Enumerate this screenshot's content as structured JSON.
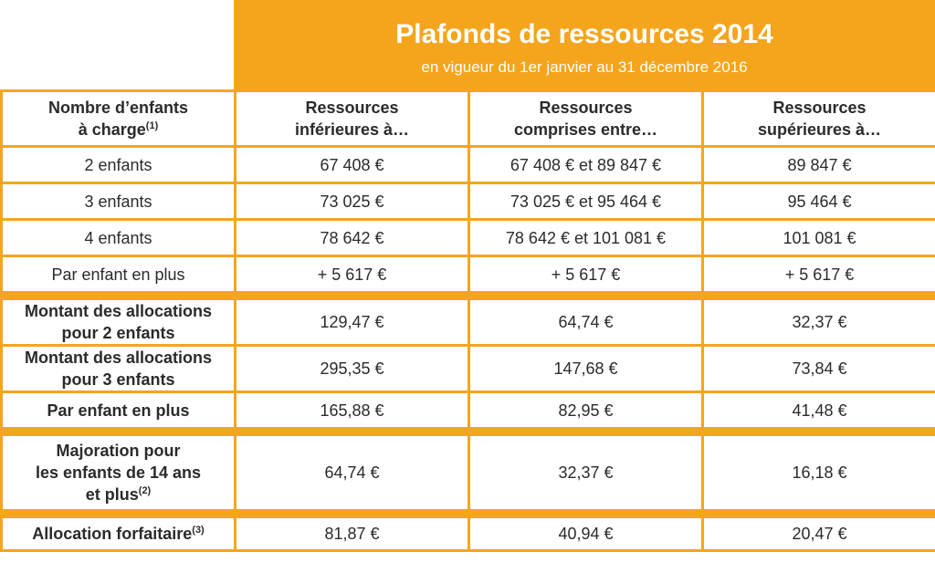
{
  "banner": {
    "title": "Plafonds de ressources 2014",
    "subtitle": "en vigueur du 1er janvier au 31 décembre 2016"
  },
  "header": {
    "col0_line1": "Nombre d’enfants",
    "col0_line2": "à charge",
    "col0_sup": "(1)",
    "col1_line1": "Ressources",
    "col1_line2": "inférieures à…",
    "col2_line1": "Ressources",
    "col2_line2": "comprises entre…",
    "col3_line1": "Ressources",
    "col3_line2": "supérieures à…"
  },
  "plafonds": [
    {
      "label": "2 enfants",
      "c1": "67 408 €",
      "c2": "67 408 € et 89 847 €",
      "c3": "89 847 €"
    },
    {
      "label": "3 enfants",
      "c1": "73 025 €",
      "c2": "73 025 € et 95 464 €",
      "c3": "95 464 €"
    },
    {
      "label": "4 enfants",
      "c1": "78 642 €",
      "c2": "78 642 € et 101 081 €",
      "c3": "101 081 €"
    },
    {
      "label": "Par enfant en plus",
      "c1": "+ 5 617 €",
      "c2": "+ 5 617 €",
      "c3": "+ 5 617 €"
    }
  ],
  "allocations": [
    {
      "line1": "Montant des allocations",
      "line2": "pour 2 enfants",
      "c1": "129,47 €",
      "c2": "64,74 €",
      "c3": "32,37 €"
    },
    {
      "line1": "Montant des allocations",
      "line2": "pour 3 enfants",
      "c1": "295,35 €",
      "c2": "147,68 €",
      "c3": "73,84 €"
    },
    {
      "line1": "Par enfant en plus",
      "c1": "165,88 €",
      "c2": "82,95 €",
      "c3": "41,48 €"
    }
  ],
  "majoration": {
    "line1": "Majoration pour",
    "line2": "les enfants de 14 ans",
    "line3": "et plus",
    "sup": "(2)",
    "c1": "64,74 €",
    "c2": "32,37 €",
    "c3": "16,18 €"
  },
  "forfaitaire": {
    "label": "Allocation forfaitaire",
    "sup": "(3)",
    "c1": "81,87 €",
    "c2": "40,94 €",
    "c3": "20,47 €"
  },
  "colors": {
    "accent": "#f5a51c",
    "text": "#2b2b2b",
    "banner_text": "#ffffff"
  }
}
